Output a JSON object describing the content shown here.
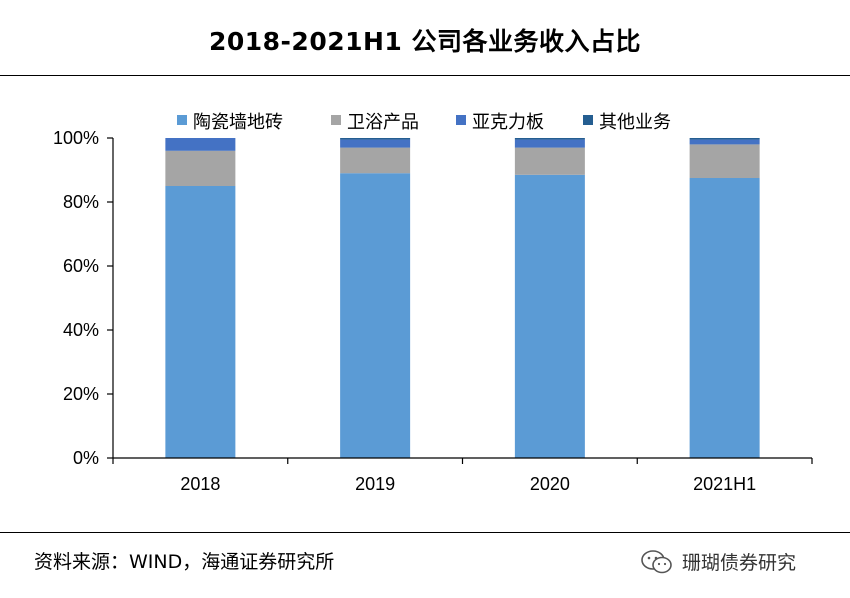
{
  "header": {
    "title": "2018-2021H1 公司各业务收入占比"
  },
  "footer": {
    "source": "资料来源：WIND，海通证券研究所",
    "watermark_icon": "wechat-icon",
    "watermark": "珊瑚债券研究"
  },
  "chart_data": {
    "type": "bar",
    "stacked": true,
    "title": "2018-2021H1 公司各业务收入占比",
    "categories": [
      "2018",
      "2019",
      "2020",
      "2021H1"
    ],
    "series": [
      {
        "name": "陶瓷墙地砖",
        "color": "#5b9bd5",
        "values": [
          85,
          89,
          88.5,
          87.5
        ]
      },
      {
        "name": "卫浴产品",
        "color": "#a5a5a5",
        "values": [
          11,
          8,
          8.5,
          10.5
        ]
      },
      {
        "name": "亚克力板",
        "color": "#4472c4",
        "values": [
          4,
          2.5,
          2.5,
          1.5
        ]
      },
      {
        "name": "其他业务",
        "color": "#255e91",
        "values": [
          0,
          0.5,
          0.5,
          0.5
        ]
      }
    ],
    "yticks": [
      "0%",
      "20%",
      "40%",
      "60%",
      "80%",
      "100%"
    ],
    "ylim": [
      0,
      100
    ],
    "legend_position": "top",
    "grid": false
  }
}
